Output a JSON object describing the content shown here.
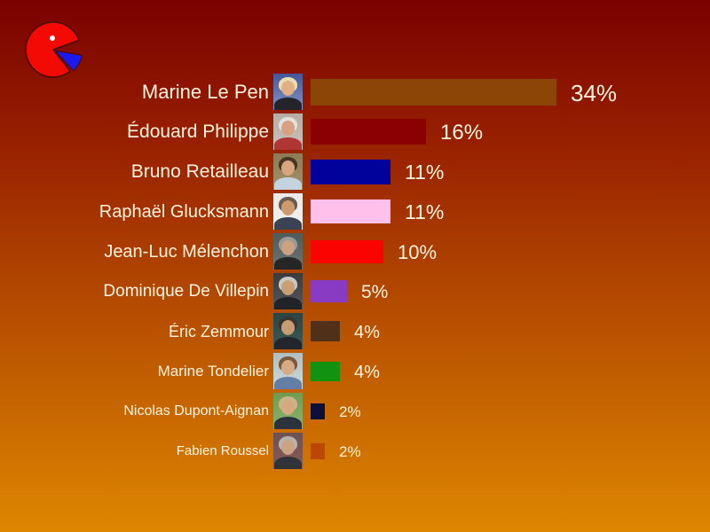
{
  "chart_data": {
    "type": "bar",
    "orientation": "horizontal",
    "title": "",
    "xlabel": "",
    "ylabel": "",
    "unit": "%",
    "grid": false,
    "legend": false,
    "xlim": [
      0,
      40
    ],
    "categories": [
      "Marine Le Pen",
      "Édouard Philippe",
      "Bruno Retailleau",
      "Raphaël Glucksmann",
      "Jean-Luc Mélenchon",
      "Dominique De Villepin",
      "Éric Zemmour",
      "Marine Tondelier",
      "Nicolas Dupont-Aignan",
      "Fabien Roussel"
    ],
    "values": [
      34,
      16,
      11,
      11,
      10,
      5,
      4,
      4,
      2,
      2
    ],
    "value_labels": [
      "34%",
      "16%",
      "11%",
      "11%",
      "10%",
      "5%",
      "4%",
      "4%",
      "2%",
      "2%"
    ],
    "bar_colors": [
      "#8B4506",
      "#8B0000",
      "#01019B",
      "#FFC0EC",
      "#FB0300",
      "#8A3BC4",
      "#503018",
      "#119211",
      "#0A1038",
      "#BC4703"
    ]
  },
  "slide": {
    "background_top": "#7A0100",
    "background_bottom": "#DE8600",
    "text_color": "#FFF3E0"
  },
  "logo": {
    "main_color": "#F40A04",
    "slice_color": "#1A1AEE",
    "outline_color": "#4A0E06",
    "eye_color": "#FFFFFF"
  },
  "photos": [
    {
      "bg1": "#44569A",
      "bg2": "#8296C6",
      "hair": "#E9DDB2",
      "skin": "#E2AF85",
      "torso": "#23232B"
    },
    {
      "bg1": "#B5ADA3",
      "bg2": "#C9C2B8",
      "hair": "#E3E1DC",
      "skin": "#D9A183",
      "torso": "#B03535"
    },
    {
      "bg1": "#8D7A57",
      "bg2": "#A5916A",
      "hair": "#473626",
      "skin": "#D8A57E",
      "torso": "#C3D3E0"
    },
    {
      "bg1": "#E9E9E7",
      "bg2": "#F2F2F0",
      "hair": "#6A5D4F",
      "skin": "#CF9A6E",
      "torso": "#3A4253"
    },
    {
      "bg1": "#4E5B59",
      "bg2": "#6A7673",
      "hair": "#9A9A96",
      "skin": "#CAA181",
      "torso": "#262624"
    },
    {
      "bg1": "#393B3E",
      "bg2": "#55575A",
      "hair": "#C9C9C4",
      "skin": "#C99F74",
      "torso": "#202328"
    },
    {
      "bg1": "#2A4644",
      "bg2": "#3C5A58",
      "hair": "#3A3330",
      "skin": "#C79C72",
      "torso": "#23272D"
    },
    {
      "bg1": "#AEBFC2",
      "bg2": "#CFD9D8",
      "hair": "#7A5A3C",
      "skin": "#D8AB84",
      "torso": "#647FA6"
    },
    {
      "bg1": "#6F9A50",
      "bg2": "#8FB470",
      "hair": "#C9B489",
      "skin": "#D8A87E",
      "torso": "#2C323E"
    },
    {
      "bg1": "#6B5254",
      "bg2": "#8A5A52",
      "hair": "#B7B2AC",
      "skin": "#CBA283",
      "torso": "#303338"
    }
  ]
}
